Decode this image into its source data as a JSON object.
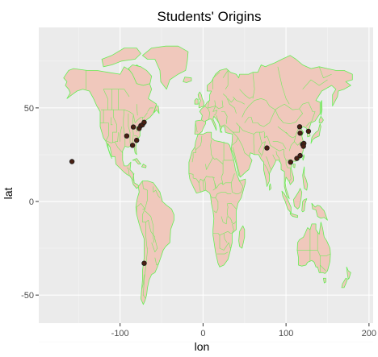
{
  "title": "Students' Origins",
  "xlabel": "lon",
  "ylabel": "lat",
  "colors": {
    "panel_bg": "#ebebeb",
    "grid_major": "#ffffff",
    "grid_minor": "#f5f5f5",
    "land_fill": "#f0c8bc",
    "border": "#66ee55",
    "point_fill": "#4a1f12",
    "point_stroke": "#1d1d1d"
  },
  "chart_data": {
    "type": "scatter",
    "title": "Students' Origins",
    "xlabel": "lon",
    "ylabel": "lat",
    "xlim": [
      -198,
      205
    ],
    "ylim": [
      -65,
      93
    ],
    "x_ticks": [
      -100,
      0,
      100,
      200
    ],
    "y_ticks": [
      -50,
      0,
      50
    ],
    "x_tick_labels": [
      "-100",
      "0",
      "100",
      "200"
    ],
    "y_tick_labels": [
      "-50",
      "0",
      "50"
    ],
    "grid": true,
    "background_map": "world country borders",
    "points": [
      {
        "lon": -158,
        "lat": 21.3
      },
      {
        "lon": -92,
        "lat": 35
      },
      {
        "lon": -84,
        "lat": 39.8
      },
      {
        "lon": -77,
        "lat": 39
      },
      {
        "lon": -75,
        "lat": 40.5
      },
      {
        "lon": -73,
        "lat": 41
      },
      {
        "lon": -71,
        "lat": 42.3
      },
      {
        "lon": -80,
        "lat": 32.7
      },
      {
        "lon": -85,
        "lat": 30
      },
      {
        "lon": -71,
        "lat": -33
      },
      {
        "lon": 77,
        "lat": 28.6
      },
      {
        "lon": 105.5,
        "lat": 21
      },
      {
        "lon": 113,
        "lat": 23
      },
      {
        "lon": 116.4,
        "lat": 39.9
      },
      {
        "lon": 117,
        "lat": 36.5
      },
      {
        "lon": 117,
        "lat": 24.5
      },
      {
        "lon": 120,
        "lat": 30.5
      },
      {
        "lon": 121.5,
        "lat": 31
      },
      {
        "lon": 121,
        "lat": 29.5
      },
      {
        "lon": 127,
        "lat": 37.5
      }
    ]
  }
}
